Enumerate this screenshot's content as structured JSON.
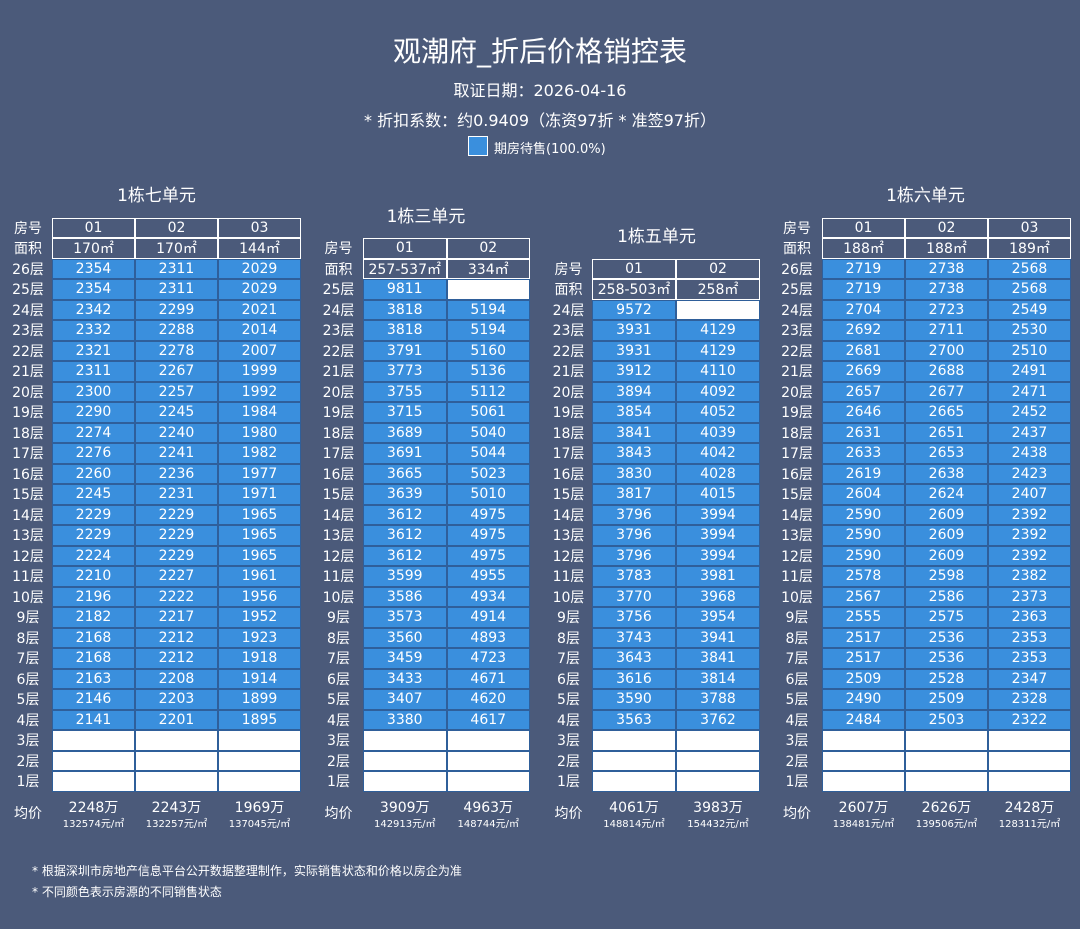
{
  "header": {
    "title": "观潮府_折后价格销控表",
    "date": "取证日期：2026-04-16",
    "discount": "* 折扣系数：约0.9409（冻资97折 * 准签97折）",
    "legend": "期房待售(100.0%)"
  },
  "labels": {
    "room": "房号",
    "area": "面积",
    "avg": "均价"
  },
  "blocks": [
    {
      "title": "1栋七单元",
      "rooms": [
        "01",
        "02",
        "03"
      ],
      "areas": [
        "170㎡",
        "170㎡",
        "144㎡"
      ],
      "floors": [
        "26层",
        "25层",
        "24层",
        "23层",
        "22层",
        "21层",
        "20层",
        "19层",
        "18层",
        "17层",
        "16层",
        "15层",
        "14层",
        "13层",
        "12层",
        "11层",
        "10层",
        "9层",
        "8层",
        "7层",
        "6层",
        "5层",
        "4层",
        "3层",
        "2层",
        "1层"
      ],
      "rows": [
        [
          2354,
          2311,
          2029
        ],
        [
          2354,
          2311,
          2029
        ],
        [
          2342,
          2299,
          2021
        ],
        [
          2332,
          2288,
          2014
        ],
        [
          2321,
          2278,
          2007
        ],
        [
          2311,
          2267,
          1999
        ],
        [
          2300,
          2257,
          1992
        ],
        [
          2290,
          2245,
          1984
        ],
        [
          2274,
          2240,
          1980
        ],
        [
          2276,
          2241,
          1982
        ],
        [
          2260,
          2236,
          1977
        ],
        [
          2245,
          2231,
          1971
        ],
        [
          2229,
          2229,
          1965
        ],
        [
          2229,
          2229,
          1965
        ],
        [
          2224,
          2229,
          1965
        ],
        [
          2210,
          2227,
          1961
        ],
        [
          2196,
          2222,
          1956
        ],
        [
          2182,
          2217,
          1952
        ],
        [
          2168,
          2212,
          1923
        ],
        [
          2168,
          2212,
          1918
        ],
        [
          2163,
          2208,
          1914
        ],
        [
          2146,
          2203,
          1899
        ],
        [
          2141,
          2201,
          1895
        ],
        [
          null,
          null,
          null
        ],
        [
          null,
          null,
          null
        ],
        [
          null,
          null,
          null
        ]
      ],
      "avg_total": [
        "2248万",
        "2243万",
        "1969万"
      ],
      "avg_unit": [
        "132574元/㎡",
        "132257元/㎡",
        "137045元/㎡"
      ]
    },
    {
      "title": "1栋三单元",
      "rooms": [
        "01",
        "02"
      ],
      "areas": [
        "257-537㎡",
        "334㎡"
      ],
      "floors": [
        "25层",
        "24层",
        "23层",
        "22层",
        "21层",
        "20层",
        "19层",
        "18层",
        "17层",
        "16层",
        "15层",
        "14层",
        "13层",
        "12层",
        "11层",
        "10层",
        "9层",
        "8层",
        "7层",
        "6层",
        "5层",
        "4层",
        "3层",
        "2层",
        "1层"
      ],
      "rows": [
        [
          9811,
          null
        ],
        [
          3818,
          5194
        ],
        [
          3818,
          5194
        ],
        [
          3791,
          5160
        ],
        [
          3773,
          5136
        ],
        [
          3755,
          5112
        ],
        [
          3715,
          5061
        ],
        [
          3689,
          5040
        ],
        [
          3691,
          5044
        ],
        [
          3665,
          5023
        ],
        [
          3639,
          5010
        ],
        [
          3612,
          4975
        ],
        [
          3612,
          4975
        ],
        [
          3612,
          4975
        ],
        [
          3599,
          4955
        ],
        [
          3586,
          4934
        ],
        [
          3573,
          4914
        ],
        [
          3560,
          4893
        ],
        [
          3459,
          4723
        ],
        [
          3433,
          4671
        ],
        [
          3407,
          4620
        ],
        [
          3380,
          4617
        ],
        [
          null,
          null
        ],
        [
          null,
          null
        ],
        [
          null,
          null
        ]
      ],
      "avg_total": [
        "3909万",
        "4963万"
      ],
      "avg_unit": [
        "142913元/㎡",
        "148744元/㎡"
      ]
    },
    {
      "title": "1栋五单元",
      "rooms": [
        "01",
        "02"
      ],
      "areas": [
        "258-503㎡",
        "258㎡"
      ],
      "floors": [
        "24层",
        "23层",
        "22层",
        "21层",
        "20层",
        "19层",
        "18层",
        "17层",
        "16层",
        "15层",
        "14层",
        "13层",
        "12层",
        "11层",
        "10层",
        "9层",
        "8层",
        "7层",
        "6层",
        "5层",
        "4层",
        "3层",
        "2层",
        "1层"
      ],
      "rows": [
        [
          9572,
          null
        ],
        [
          3931,
          4129
        ],
        [
          3931,
          4129
        ],
        [
          3912,
          4110
        ],
        [
          3894,
          4092
        ],
        [
          3854,
          4052
        ],
        [
          3841,
          4039
        ],
        [
          3843,
          4042
        ],
        [
          3830,
          4028
        ],
        [
          3817,
          4015
        ],
        [
          3796,
          3994
        ],
        [
          3796,
          3994
        ],
        [
          3796,
          3994
        ],
        [
          3783,
          3981
        ],
        [
          3770,
          3968
        ],
        [
          3756,
          3954
        ],
        [
          3743,
          3941
        ],
        [
          3643,
          3841
        ],
        [
          3616,
          3814
        ],
        [
          3590,
          3788
        ],
        [
          3563,
          3762
        ],
        [
          null,
          null
        ],
        [
          null,
          null
        ],
        [
          null,
          null
        ]
      ],
      "avg_total": [
        "4061万",
        "3983万"
      ],
      "avg_unit": [
        "148814元/㎡",
        "154432元/㎡"
      ]
    },
    {
      "title": "1栋六单元",
      "rooms": [
        "01",
        "02",
        "03"
      ],
      "areas": [
        "188㎡",
        "188㎡",
        "189㎡"
      ],
      "floors": [
        "26层",
        "25层",
        "24层",
        "23层",
        "22层",
        "21层",
        "20层",
        "19层",
        "18层",
        "17层",
        "16层",
        "15层",
        "14层",
        "13层",
        "12层",
        "11层",
        "10层",
        "9层",
        "8层",
        "7层",
        "6层",
        "5层",
        "4层",
        "3层",
        "2层",
        "1层"
      ],
      "rows": [
        [
          2719,
          2738,
          2568
        ],
        [
          2719,
          2738,
          2568
        ],
        [
          2704,
          2723,
          2549
        ],
        [
          2692,
          2711,
          2530
        ],
        [
          2681,
          2700,
          2510
        ],
        [
          2669,
          2688,
          2491
        ],
        [
          2657,
          2677,
          2471
        ],
        [
          2646,
          2665,
          2452
        ],
        [
          2631,
          2651,
          2437
        ],
        [
          2633,
          2653,
          2438
        ],
        [
          2619,
          2638,
          2423
        ],
        [
          2604,
          2624,
          2407
        ],
        [
          2590,
          2609,
          2392
        ],
        [
          2590,
          2609,
          2392
        ],
        [
          2590,
          2609,
          2392
        ],
        [
          2578,
          2598,
          2382
        ],
        [
          2567,
          2586,
          2373
        ],
        [
          2555,
          2575,
          2363
        ],
        [
          2517,
          2536,
          2353
        ],
        [
          2517,
          2536,
          2353
        ],
        [
          2509,
          2528,
          2347
        ],
        [
          2490,
          2509,
          2328
        ],
        [
          2484,
          2503,
          2322
        ],
        [
          null,
          null,
          null
        ],
        [
          null,
          null,
          null
        ],
        [
          null,
          null,
          null
        ]
      ],
      "avg_total": [
        "2607万",
        "2626万",
        "2428万"
      ],
      "avg_unit": [
        "138481元/㎡",
        "139506元/㎡",
        "128311元/㎡"
      ]
    }
  ],
  "footnotes": [
    "* 根据深圳市房地产信息平台公开数据整理制作，实际销售状态和价格以房企为准",
    "* 不同颜色表示房源的不同销售状态"
  ]
}
